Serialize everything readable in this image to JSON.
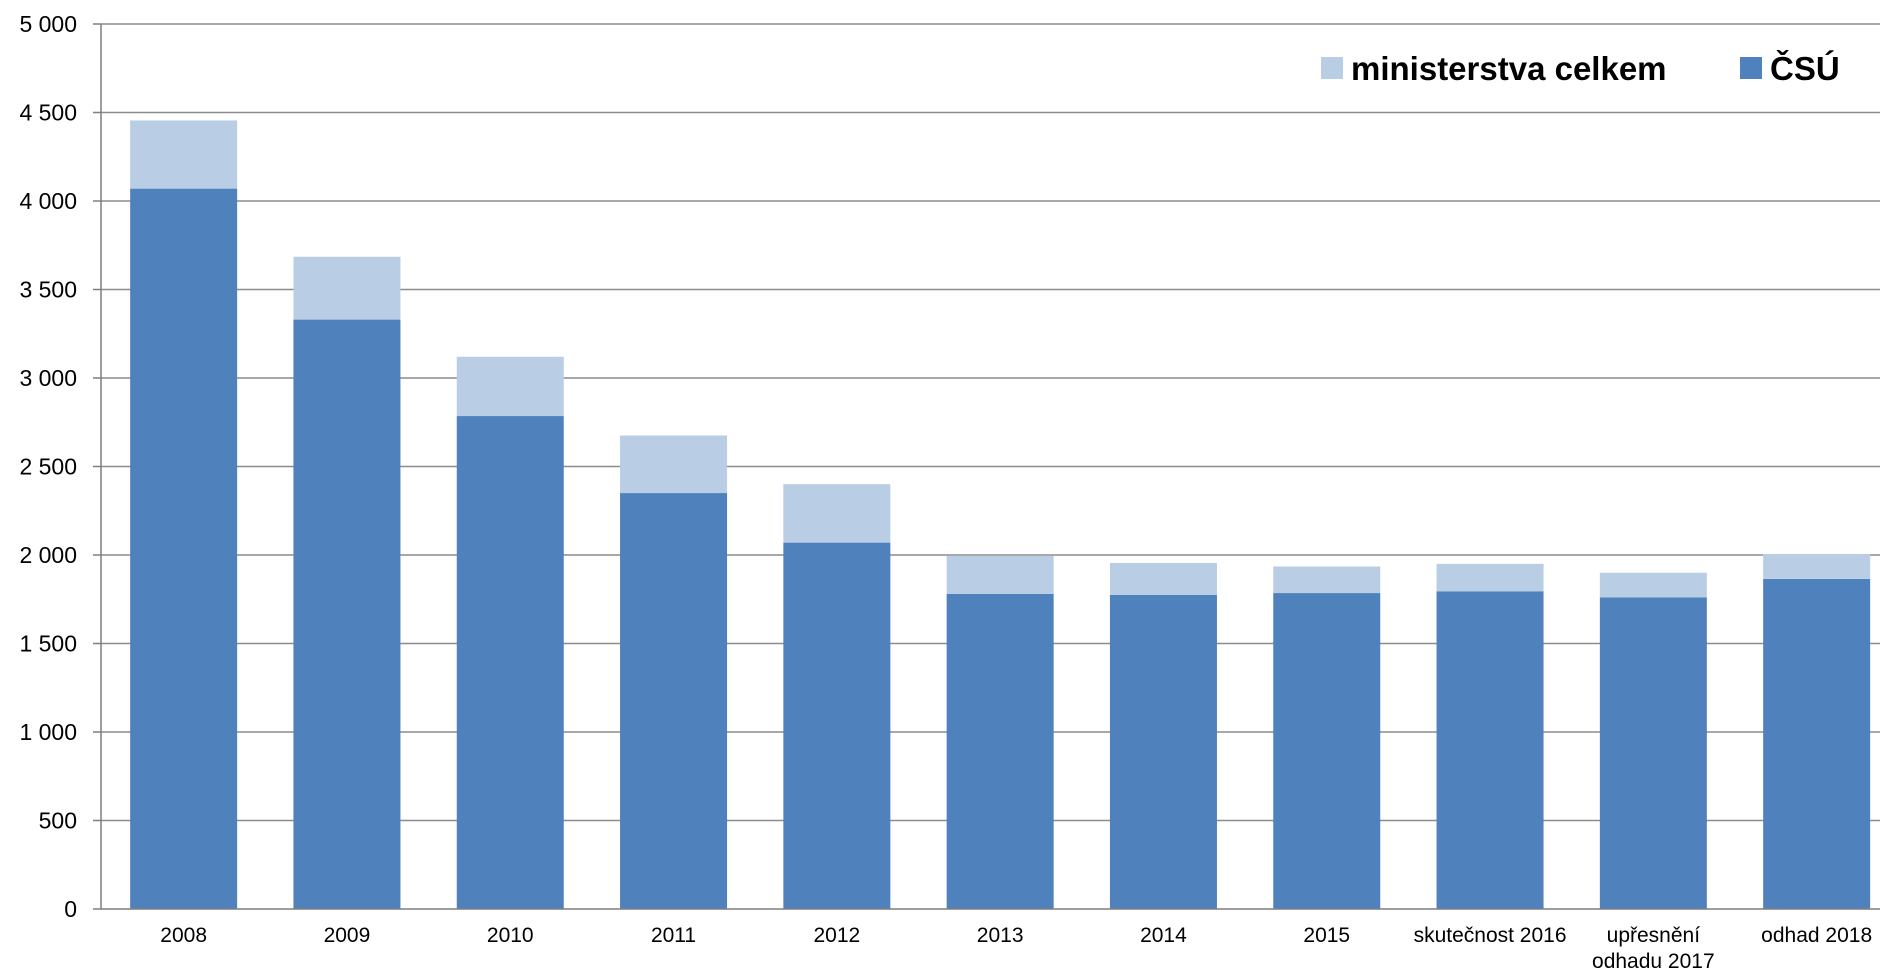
{
  "chart_data": {
    "type": "bar",
    "stacked": true,
    "categories": [
      "2008",
      "2009",
      "2010",
      "2011",
      "2012",
      "2013",
      "2014",
      "2015",
      "skutečnost 2016",
      "upřesnění odhadu 2017",
      "odhad 2018"
    ],
    "series": [
      {
        "name": "ČSÚ",
        "color": "#4f81bd",
        "values": [
          4070,
          3330,
          2785,
          2350,
          2070,
          1780,
          1775,
          1785,
          1795,
          1760,
          1865
        ]
      },
      {
        "name": "ministerstva celkem",
        "color": "#b9cde5",
        "values": [
          385,
          355,
          335,
          325,
          330,
          215,
          180,
          150,
          155,
          140,
          140
        ]
      }
    ],
    "legend_order": [
      "ministerstva celkem",
      "ČSÚ"
    ],
    "legend_position": "top-right",
    "ylim": [
      0,
      5000
    ],
    "y_ticks": [
      "0",
      "500",
      "1 000",
      "1 500",
      "2 000",
      "2 500",
      "3 000",
      "3 500",
      "4 000",
      "4 500",
      "5 000"
    ],
    "grid": true,
    "title": "",
    "xlabel": "",
    "ylabel": ""
  }
}
